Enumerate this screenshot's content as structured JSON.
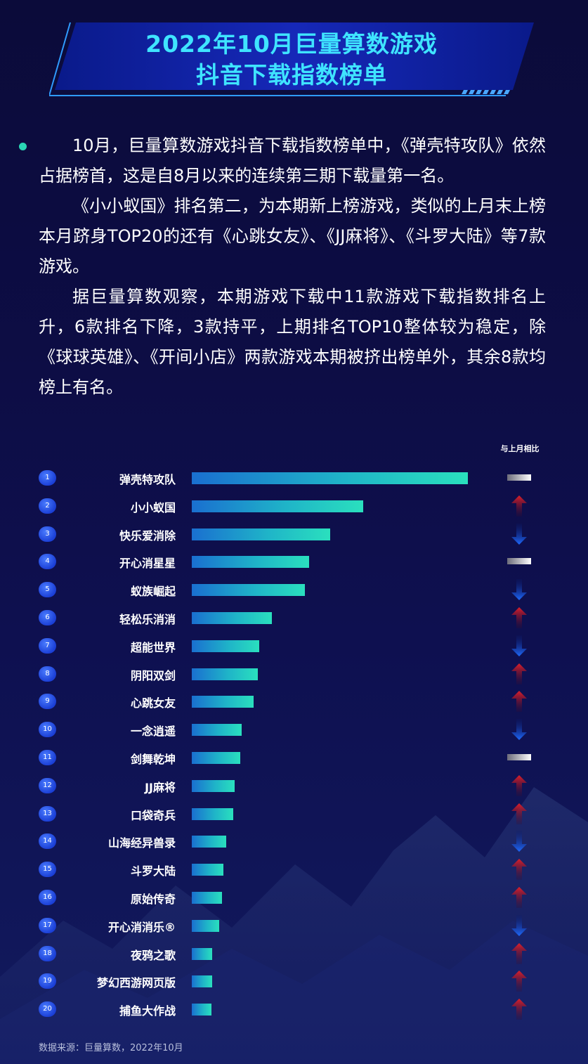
{
  "header": {
    "title_line1": "2022年10月巨量算数游戏",
    "title_line2": "抖音下载指数榜单"
  },
  "paragraphs": [
    "10月，巨量算数游戏抖音下载指数榜单中，《弹壳特攻队》依然占据榜首，这是自8月以来的连续第三期下载量第一名。",
    "《小小蚁国》排名第二，为本期新上榜游戏，类似的上月末上榜本月跻身TOP20的还有《心跳女友》、《JJ麻将》、《斗罗大陆》等7款游戏。",
    "据巨量算数观察，本期游戏下载中11款游戏下载指数排名上升，6款排名下降，3款持平，上期排名TOP10整体较为稳定，除《球球英雄》、《开间小店》两款游戏本期被挤出榜单外，其余8款均榜上有名。"
  ],
  "compare_label": "与上月相比",
  "chart_data": {
    "type": "bar",
    "orientation": "horizontal",
    "value_unit": "relative share of the top bar",
    "categories": [
      "弹壳特攻队",
      "小小蚁国",
      "快乐爱消除",
      "开心消星星",
      "蚁族崛起",
      "轻松乐消消",
      "超能世界",
      "阴阳双剑",
      "心跳女友",
      "一念逍遥",
      "剑舞乾坤",
      "JJ麻将",
      "口袋奇兵",
      "山海经异兽录",
      "斗罗大陆",
      "原始传奇",
      "开心消消乐®",
      "夜鸦之歌",
      "梦幻西游网页版",
      "捕鱼大作战"
    ],
    "ranks": [
      "1",
      "2",
      "3",
      "4",
      "5",
      "6",
      "7",
      "8",
      "9",
      "10",
      "11",
      "12",
      "13",
      "14",
      "15",
      "16",
      "17",
      "18",
      "19",
      "20"
    ],
    "values": [
      1.0,
      0.62,
      0.5,
      0.425,
      0.41,
      0.29,
      0.245,
      0.24,
      0.225,
      0.18,
      0.175,
      0.155,
      0.15,
      0.125,
      0.115,
      0.11,
      0.1,
      0.075,
      0.075,
      0.07
    ],
    "changes": [
      "flat",
      "up",
      "down",
      "flat",
      "down",
      "up",
      "down",
      "up",
      "up",
      "down",
      "flat",
      "up",
      "up",
      "down",
      "up",
      "up",
      "down",
      "up",
      "up",
      "up"
    ],
    "colors": {
      "bar_start": "#1a6fd0",
      "bar_end": "#2ae0be",
      "up": "#e0202a",
      "down": "#1f6bff",
      "flat": "#ffffff"
    }
  },
  "source_note": "数据来源：巨量算数，2022年10月"
}
